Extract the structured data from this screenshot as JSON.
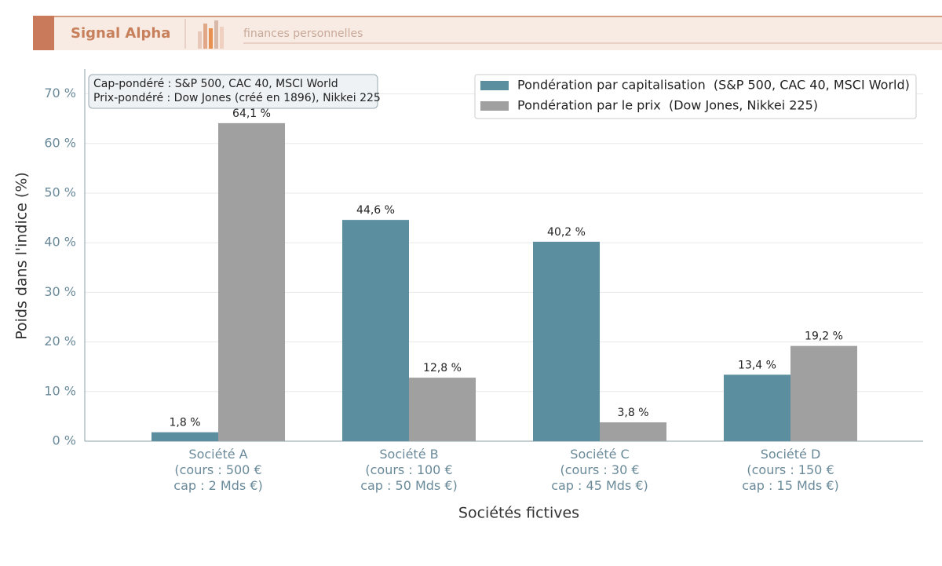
{
  "header": {
    "brand": "Signal Alpha",
    "tagline": "finances personnelles"
  },
  "chart_data": {
    "type": "bar",
    "xlabel": "Sociétés fictives",
    "ylabel": "Poids dans l'indice (%)",
    "annotation": [
      "Cap-pondéré : S&P 500, CAC 40, MSCI World",
      "Prix-pondéré : Dow Jones (créé en 1896), Nikkei 225"
    ],
    "categories": [
      "Société A\n(cours : 500 €\ncap : 2 Mds €)",
      "Société B\n(cours : 100 €\ncap : 50 Mds €)",
      "Société C\n(cours : 30 €\ncap : 45 Mds €)",
      "Société D\n(cours : 150 €\ncap : 15 Mds €)"
    ],
    "series": [
      {
        "name": "Pondération par capitalisation  (S&P 500, CAC 40, MSCI World)",
        "color": "#5b8fa0",
        "values": [
          1.8,
          44.6,
          40.2,
          13.4
        ],
        "value_labels": [
          "1,8 %",
          "44,6 %",
          "40,2 %",
          "13,4 %"
        ]
      },
      {
        "name": "Pondération par le prix  (Dow Jones, Nikkei 225)",
        "color": "#a0a0a0",
        "values": [
          64.1,
          12.8,
          3.8,
          19.2
        ],
        "value_labels": [
          "64,1 %",
          "12,8 %",
          "3,8 %",
          "19,2 %"
        ]
      }
    ],
    "ylim": [
      0,
      75
    ],
    "yticks": [
      {
        "value": 0,
        "label": "0 %"
      },
      {
        "value": 10,
        "label": "10 %"
      },
      {
        "value": 20,
        "label": "20 %"
      },
      {
        "value": 30,
        "label": "30 %"
      },
      {
        "value": 40,
        "label": "40 %"
      },
      {
        "value": 50,
        "label": "50 %"
      },
      {
        "value": 60,
        "label": "60 %"
      },
      {
        "value": 70,
        "label": "70 %"
      }
    ],
    "grid": true,
    "legend": "upper right"
  }
}
